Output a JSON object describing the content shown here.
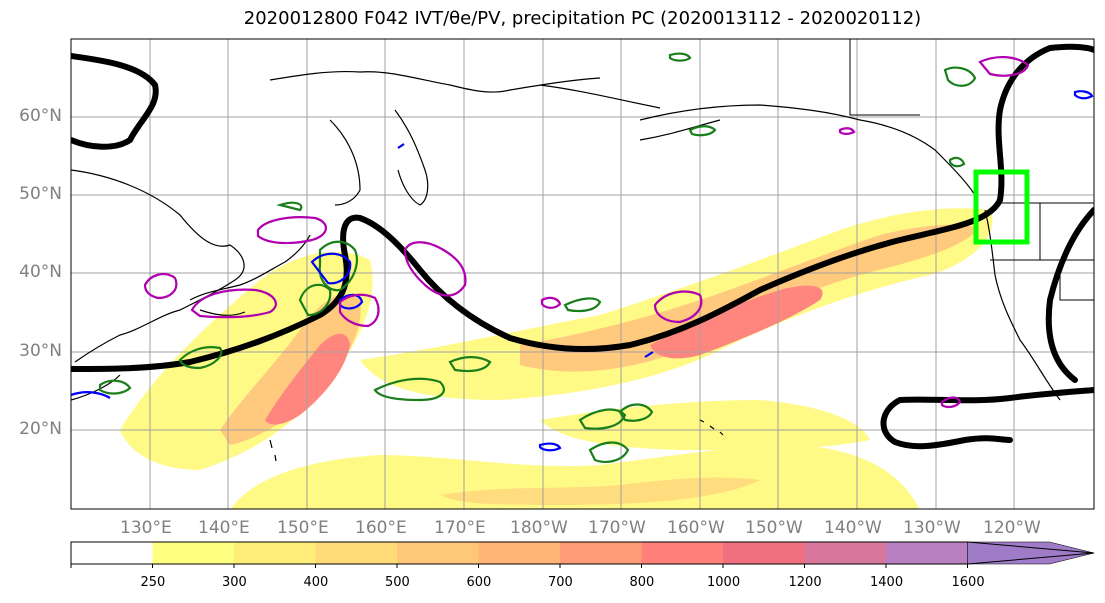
{
  "title": "2020012800 F042 IVT/θe/PV, precipitation PC (2020013112 - 2020020112)",
  "longitude_labels": [
    "130°E",
    "140°E",
    "150°E",
    "160°E",
    "170°E",
    "180°W",
    "170°W",
    "160°W",
    "150°W",
    "140°W",
    "130°W",
    "120°W"
  ],
  "latitude_labels": [
    "60°N",
    "50°N",
    "40°N",
    "30°N",
    "20°N"
  ],
  "colorbar": {
    "levels": [
      "250",
      "300",
      "400",
      "500",
      "600",
      "700",
      "800",
      "1000",
      "1200",
      "1400",
      "1600"
    ],
    "colors": [
      "#ffffff",
      "#ffff80",
      "#ffef78",
      "#ffdc78",
      "#ffc878",
      "#ffb478",
      "#ff9c78",
      "#ff8078",
      "#f07080",
      "#d8789c",
      "#b880c0",
      "#a07cc8"
    ]
  },
  "colors": {
    "ivt_fill_low": "#fffa80",
    "ivt_fill_mid": "#ffc878",
    "ivt_fill_high": "#ff8078",
    "theta_e_contour": "#000000",
    "pv_green": "#1a7f1a",
    "pv_blue": "#0000ff",
    "pv_magenta": "#b000b0",
    "target_box": "#00ff00",
    "coastline": "#000000",
    "gridline": "#a0a0a0"
  },
  "map": {
    "grid": true,
    "projection": "cylindrical"
  }
}
